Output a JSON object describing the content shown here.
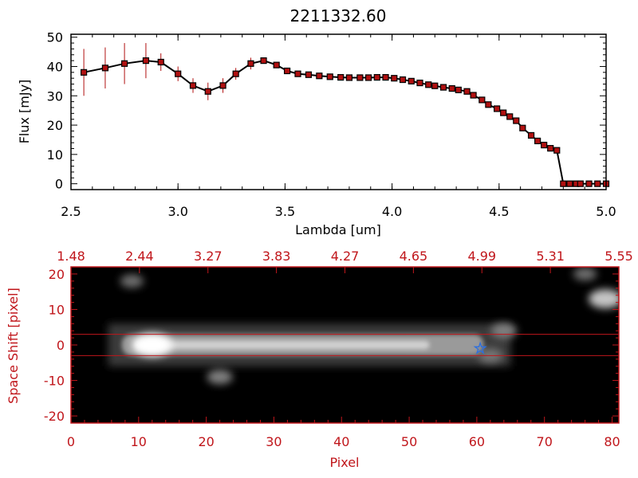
{
  "chart_data": [
    {
      "type": "line",
      "title": "2211332.60",
      "xlabel": "Lambda [um]",
      "ylabel": "Flux [mJy]",
      "xlim": [
        2.5,
        5.0
      ],
      "ylim": [
        -2,
        51
      ],
      "xticks": [
        "2.5",
        "3.0",
        "3.5",
        "4.0",
        "4.5",
        "5.0"
      ],
      "yticks": [
        "0",
        "10",
        "20",
        "30",
        "40",
        "50"
      ],
      "series": [
        {
          "color": "#b01010",
          "x": [
            2.56,
            2.66,
            2.75,
            2.85,
            2.92,
            3.0,
            3.07,
            3.14,
            3.21,
            3.27,
            3.34,
            3.4,
            3.46,
            3.51,
            3.56,
            3.61,
            3.66,
            3.71,
            3.76,
            3.8,
            3.85,
            3.89,
            3.93,
            3.97,
            4.01,
            4.05,
            4.09,
            4.13,
            4.17,
            4.2,
            4.24,
            4.28,
            4.31,
            4.35,
            4.38,
            4.42,
            4.45,
            4.49,
            4.52,
            4.55,
            4.58,
            4.61,
            4.65,
            4.68,
            4.71,
            4.74,
            4.77,
            4.8,
            4.83,
            4.86,
            4.88,
            4.92,
            4.96,
            5.0
          ],
          "y": [
            38,
            39.5,
            41,
            42,
            41.5,
            37.5,
            33.5,
            31.5,
            33.5,
            37.5,
            41,
            42,
            40.5,
            38.5,
            37.5,
            37.2,
            36.8,
            36.5,
            36.3,
            36.2,
            36.2,
            36.2,
            36.3,
            36.3,
            36,
            35.5,
            35,
            34.4,
            33.8,
            33.4,
            32.9,
            32.5,
            32,
            31.5,
            30.2,
            28.6,
            27,
            25.6,
            24.2,
            22.9,
            21.5,
            19,
            16.5,
            14.6,
            13.2,
            12.1,
            11.4,
            0,
            0,
            0,
            0,
            0,
            0,
            0
          ],
          "yerr": [
            8,
            7,
            7,
            6,
            3,
            2.5,
            2.5,
            3,
            2.5,
            2,
            2,
            1,
            0.7,
            0.7,
            0.7,
            0.5,
            0.5,
            0.5,
            0.5,
            0.5,
            0.5,
            0.5,
            0.5,
            0.5,
            0.5,
            0.5,
            0.5,
            0.5,
            0.5,
            0.5,
            0.5,
            0.5,
            0.5,
            0.5,
            0.5,
            0.5,
            0.5,
            0.5,
            0.5,
            0.5,
            0.5,
            0.5,
            0.5,
            0.5,
            0.5,
            0.5,
            0.5,
            0.5,
            0.5,
            0.5,
            0.5,
            0.5,
            0.5,
            0.5
          ]
        }
      ]
    },
    {
      "type": "heatmap",
      "xlabel": "Pixel",
      "ylabel": "Space Shift [pixel]",
      "xlim": [
        0,
        81
      ],
      "ylim": [
        -22,
        22
      ],
      "xticks": [
        "0",
        "10",
        "20",
        "30",
        "40",
        "50",
        "60",
        "70",
        "80"
      ],
      "yticks": [
        "-20",
        "-10",
        "0",
        "10",
        "20"
      ],
      "top_ticks": [
        "1.48",
        "2.44",
        "3.27",
        "3.83",
        "4.27",
        "4.65",
        "4.99",
        "5.31",
        "5.55"
      ],
      "axis_color": "#c0161b",
      "colormap": "grayscale",
      "extraction_band": [
        -3,
        3
      ],
      "source_marker": {
        "x": 60.5,
        "y": -1,
        "color": "#2d6fe0"
      },
      "trace": {
        "x_start": 7.5,
        "x_end": 61,
        "center_y": 0
      },
      "blobs": [
        {
          "x": 12,
          "y": 0,
          "brightness": 1.0
        },
        {
          "x": 22,
          "y": -9,
          "brightness": 0.35
        },
        {
          "x": 9,
          "y": 18,
          "brightness": 0.25
        },
        {
          "x": 79,
          "y": 13,
          "brightness": 0.7
        },
        {
          "x": 64,
          "y": 4,
          "brightness": 0.35
        },
        {
          "x": 62,
          "y": -3,
          "brightness": 0.3
        },
        {
          "x": 76,
          "y": 20,
          "brightness": 0.25
        }
      ]
    }
  ]
}
